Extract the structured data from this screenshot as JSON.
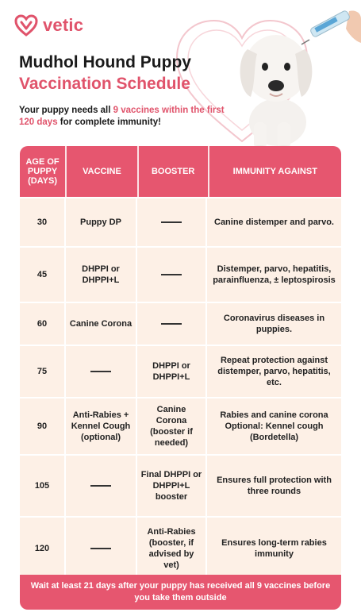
{
  "brand": {
    "name": "vetic",
    "color": "#e0536b"
  },
  "title": {
    "line1": "Mudhol Hound Puppy",
    "line2": "Vaccination Schedule"
  },
  "intro": {
    "p1": "Your puppy needs all ",
    "h1": "9 vaccines within the first 120 days",
    "p2": " for complete immunity!"
  },
  "table": {
    "headers": [
      "AGE OF PUPPY (DAYS)",
      "VACCINE",
      "BOOSTER",
      "IMMUNITY AGAINST"
    ],
    "rows": [
      {
        "age": "30",
        "vaccine": "Puppy DP",
        "booster": "",
        "immunity": "Canine distemper and parvo."
      },
      {
        "age": "45",
        "vaccine": "DHPPI or DHPPI+L",
        "booster": "",
        "immunity": "Distemper, parvo, hepatitis, parainfluenza, ± leptospirosis"
      },
      {
        "age": "60",
        "vaccine": "Canine Corona",
        "booster": "",
        "immunity": "Coronavirus diseases in puppies."
      },
      {
        "age": "75",
        "vaccine": "",
        "booster": "DHPPI or DHPPI+L",
        "immunity": "Repeat protection against distemper, parvo, hepatitis, etc."
      },
      {
        "age": "90",
        "vaccine": "Anti-Rabies + Kennel Cough (optional)",
        "booster": "Canine Corona (booster if needed)",
        "immunity": "Rabies and canine corona Optional: Kennel cough (Bordetella)"
      },
      {
        "age": "105",
        "vaccine": "",
        "booster": "Final DHPPI or DHPPI+L booster",
        "immunity": "Ensures full protection with three rounds"
      },
      {
        "age": "120",
        "vaccine": "",
        "booster": "Anti-Rabies (booster, if advised by vet)",
        "immunity": "Ensures long-term rabies immunity"
      }
    ]
  },
  "footer": "Wait at least 21 days after your puppy has received all 9 vaccines before you take them outside",
  "colors": {
    "accent": "#e6566f",
    "row_bg": "#fdf0e6"
  }
}
